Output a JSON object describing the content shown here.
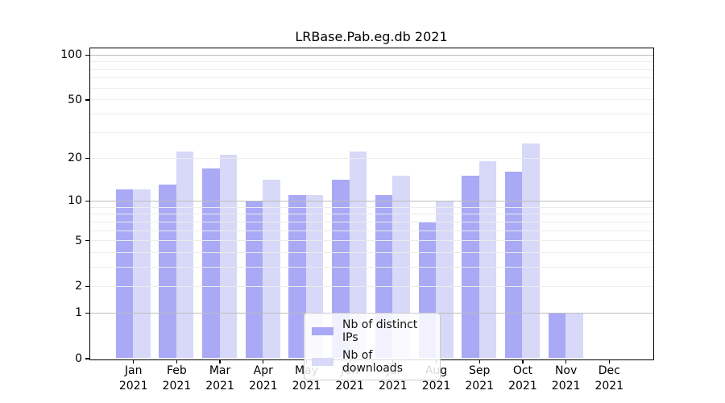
{
  "title": "LRBase.Pab.eg.db 2021",
  "colors": {
    "ips_bar": "#a9a9f6",
    "downloads_bar": "#d8d8f9",
    "grid_major": "#bdbdbd",
    "grid_minor": "#ececec",
    "axis": "#000000",
    "legend_border": "#cccccc"
  },
  "legend": {
    "position": "lower center",
    "items": [
      "Nb of distinct IPs",
      "Nb of downloads"
    ]
  },
  "chart_data": {
    "type": "bar",
    "title": "LRBase.Pab.eg.db 2021",
    "categories": [
      "Jan 2021",
      "Feb 2021",
      "Mar 2021",
      "Apr 2021",
      "May 2021",
      "Jun 2021",
      "Jul 2021",
      "Aug 2021",
      "Sep 2021",
      "Oct 2021",
      "Nov 2021",
      "Dec 2021"
    ],
    "series": [
      {
        "name": "Nb of distinct IPs",
        "color": "#a9a9f6",
        "values": [
          12,
          13,
          17,
          10,
          11,
          14,
          11,
          7,
          15,
          16,
          1,
          0
        ]
      },
      {
        "name": "Nb of downloads",
        "color": "#d8d8f9",
        "values": [
          12,
          22,
          21,
          14,
          11,
          22,
          15,
          10,
          19,
          25,
          1,
          0
        ]
      }
    ],
    "xlabel": "",
    "ylabel": "",
    "yscale": "log10(1+x)",
    "ylim": [
      0,
      110
    ],
    "y_tick_labels": [
      "0",
      "1",
      "2",
      "5",
      "10",
      "20",
      "50",
      "100"
    ],
    "y_ticks": [
      0,
      1,
      2,
      5,
      10,
      20,
      50,
      100
    ],
    "y_grid_major": [
      1,
      10,
      100
    ],
    "y_grid_minor": [
      2,
      3,
      4,
      5,
      6,
      7,
      8,
      9,
      20,
      30,
      40,
      50,
      60,
      70,
      80,
      90
    ],
    "grid": true,
    "legend_position": "lower center"
  }
}
